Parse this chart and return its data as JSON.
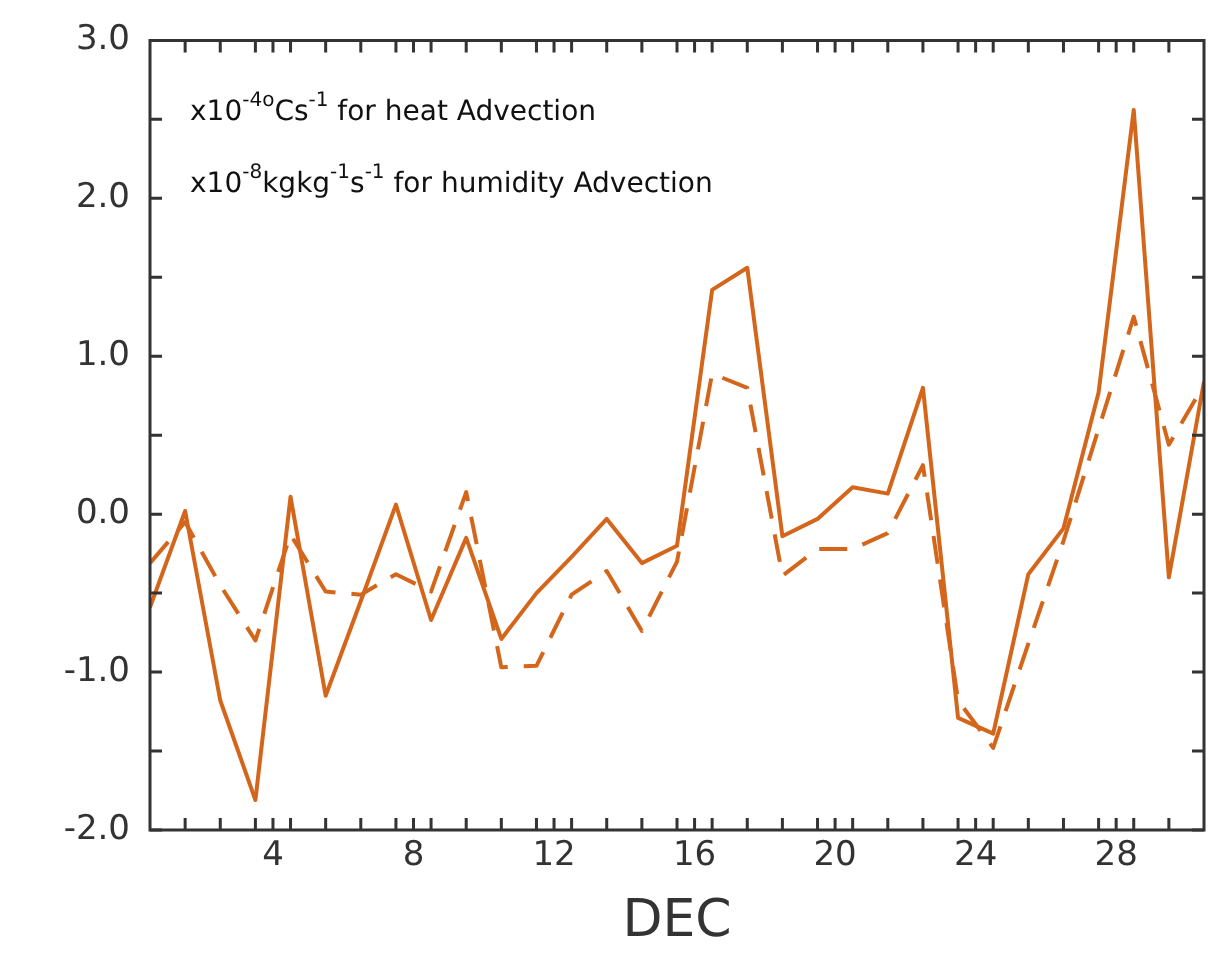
{
  "chart_data": {
    "type": "line",
    "xlabel": "DEC",
    "annotations": [
      "x10$^{-4o}$Cs$^{-1}$ for heat Advection",
      "x10$^{-8}$kgkg$^{-1}$s$^{-1}$ for humidity Advection"
    ],
    "x": [
      0.5,
      1.5,
      2.5,
      3.5,
      4.5,
      5.5,
      6.5,
      7.5,
      8.5,
      9.5,
      10.5,
      11.5,
      12.5,
      13.5,
      14.5,
      15.5,
      16.5,
      17.5,
      18.5,
      19.5,
      20.5,
      21.5,
      22.5,
      23.5,
      24.5,
      25.5,
      26.5,
      27.5,
      28.5,
      29.5,
      30.5
    ],
    "series": [
      {
        "color": "#d4661c",
        "line_style": "solid",
        "values": [
          -0.59,
          0.02,
          -1.18,
          -1.81,
          0.11,
          -1.15,
          -0.55,
          0.06,
          -0.67,
          -0.15,
          -0.79,
          -0.5,
          -0.27,
          -0.03,
          -0.31,
          -0.2,
          1.42,
          1.56,
          -0.14,
          -0.03,
          0.17,
          0.13,
          0.8,
          -1.29,
          -1.39,
          -0.38,
          -0.09,
          0.77,
          2.56,
          -0.4,
          0.84
        ]
      },
      {
        "color": "#d4661c",
        "line_style": "dashed",
        "values": [
          -0.31,
          -0.05,
          -0.45,
          -0.8,
          -0.13,
          -0.49,
          -0.51,
          -0.38,
          -0.49,
          0.14,
          -0.97,
          -0.96,
          -0.51,
          -0.36,
          -0.74,
          -0.3,
          0.89,
          0.8,
          -0.39,
          -0.22,
          -0.22,
          -0.12,
          0.31,
          -1.18,
          -1.48,
          -0.82,
          -0.17,
          0.54,
          1.25,
          0.44,
          0.82
        ]
      }
    ],
    "xlim": [
      0.5,
      30.5
    ],
    "xticks": [
      {
        "value": 1.5,
        "label": null
      },
      {
        "value": 2.5,
        "label": null
      },
      {
        "value": 3.5,
        "label": null
      },
      4,
      {
        "value": 4.5,
        "label": null
      },
      {
        "value": 5.5,
        "label": null
      },
      {
        "value": 6.5,
        "label": null
      },
      {
        "value": 7.5,
        "label": null
      },
      8,
      {
        "value": 8.5,
        "label": null
      },
      {
        "value": 9.5,
        "label": null
      },
      {
        "value": 10.5,
        "label": null
      },
      {
        "value": 11.5,
        "label": null
      },
      12,
      {
        "value": 12.5,
        "label": null
      },
      {
        "value": 13.5,
        "label": null
      },
      {
        "value": 14.5,
        "label": null
      },
      {
        "value": 15.5,
        "label": null
      },
      16,
      {
        "value": 16.5,
        "label": null
      },
      {
        "value": 17.5,
        "label": null
      },
      {
        "value": 18.5,
        "label": null
      },
      {
        "value": 19.5,
        "label": null
      },
      20,
      {
        "value": 20.5,
        "label": null
      },
      {
        "value": 21.5,
        "label": null
      },
      {
        "value": 22.5,
        "label": null
      },
      {
        "value": 23.5,
        "label": null
      },
      24,
      {
        "value": 24.5,
        "label": null
      },
      {
        "value": 25.5,
        "label": null
      },
      {
        "value": 26.5,
        "label": null
      },
      {
        "value": 27.5,
        "label": null
      },
      28,
      {
        "value": 28.5,
        "label": null
      },
      {
        "value": 29.5,
        "label": null
      }
    ],
    "ylim": [
      -2,
      3
    ],
    "yticks": [
      {
        "value": -2,
        "label": "-2.0"
      },
      {
        "value": -1.5,
        "label": null
      },
      {
        "value": -1,
        "label": "-1.0"
      },
      {
        "value": -0.5,
        "label": null
      },
      {
        "value": 0,
        "label": "0.0"
      },
      {
        "value": 0.5,
        "label": null
      },
      {
        "value": 1,
        "label": "1.0"
      },
      {
        "value": 1.5,
        "label": null
      },
      {
        "value": 2,
        "label": "2.0"
      },
      {
        "value": 2.5,
        "label": null
      },
      {
        "value": 3,
        "label": "3.0"
      }
    ],
    "grid": false,
    "legend": false,
    "marker": "none"
  }
}
